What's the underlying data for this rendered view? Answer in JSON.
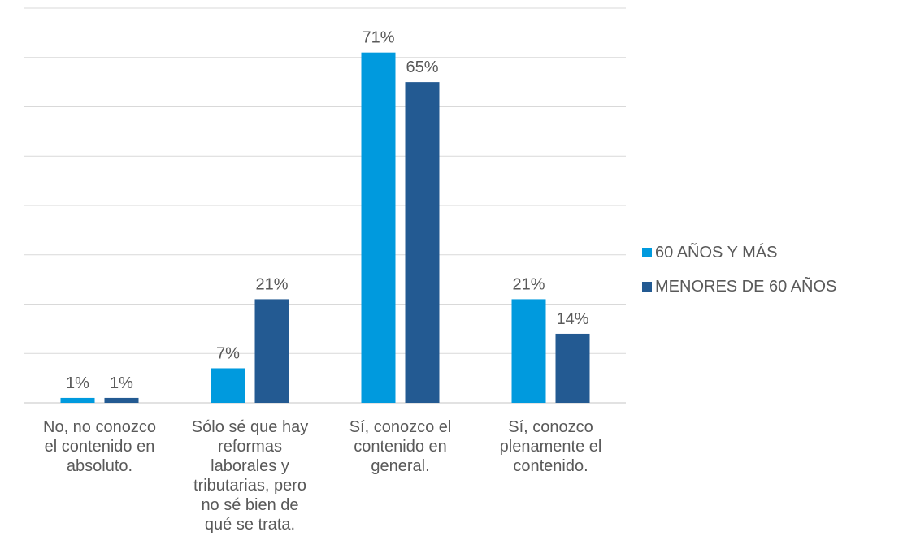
{
  "chart_data": {
    "type": "bar",
    "categories": [
      [
        "No, no conozco",
        "el contenido en",
        "absoluto."
      ],
      [
        "Sólo sé que hay",
        "reformas",
        "laborales y",
        "tributarias, pero",
        "no sé bien de",
        "qué se trata."
      ],
      [
        "Sí, conozco el",
        "contenido en",
        "general."
      ],
      [
        "Sí, conozco",
        "plenamente el",
        "contenido."
      ]
    ],
    "series": [
      {
        "name": "60 AÑOS Y MÁS",
        "values": [
          1,
          7,
          71,
          21
        ],
        "labels": [
          "1%",
          "7%",
          "71%",
          "21%"
        ],
        "color": "#009ADE"
      },
      {
        "name": "MENORES DE 60 AÑOS",
        "values": [
          1,
          21,
          65,
          14
        ],
        "labels": [
          "1%",
          "21%",
          "65%",
          "14%"
        ],
        "color": "#235A92"
      }
    ],
    "ylim": [
      0,
      80
    ],
    "grid": true,
    "legend": "right",
    "gridColor": "#D9D9D9"
  }
}
